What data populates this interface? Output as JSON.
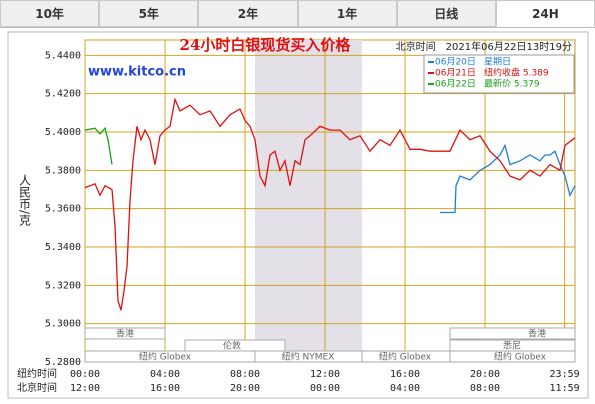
{
  "tabs": [
    "10年",
    "5年",
    "2年",
    "1年",
    "日线",
    "24H"
  ],
  "chart_data": {
    "type": "line",
    "title": "24小时白银现货买入价格",
    "subtitle": "北京时间　2021年06月22日13时19分",
    "watermark": "www.kitco.cn",
    "y_label": "人民币/克",
    "x_row_labels": [
      "纽约时间",
      "北京时间"
    ],
    "sessions": [
      "香港",
      "香港",
      "伦敦",
      "悉尼",
      "纽约 Globex",
      "纽约 NYMEX",
      "纽约 Globex",
      "纽约 Globex"
    ],
    "xlim": [
      0,
      24.5
    ],
    "ylim": [
      5.28,
      5.448
    ],
    "grid": true,
    "yticks": [
      {
        "value": 5.44,
        "label": "5.4400"
      },
      {
        "value": 5.42,
        "label": "5.4200"
      },
      {
        "value": 5.4,
        "label": "5.4000"
      },
      {
        "value": 5.38,
        "label": "5.3800"
      },
      {
        "value": 5.36,
        "label": "5.3600"
      },
      {
        "value": 5.34,
        "label": "5.3400"
      },
      {
        "value": 5.32,
        "label": "5.3200"
      },
      {
        "value": 5.3,
        "label": "5.3000"
      },
      {
        "value": 5.28,
        "label": "5.2800"
      }
    ],
    "xticks": [
      {
        "value": 0,
        "label": "00:00"
      },
      {
        "value": 4,
        "label": "04:00"
      },
      {
        "value": 8,
        "label": "08:00"
      },
      {
        "value": 12,
        "label": "12:00"
      },
      {
        "value": 16,
        "label": "16:00"
      },
      {
        "value": 20,
        "label": "20:00"
      },
      {
        "value": 23.98,
        "label": "23:59"
      }
    ],
    "x2ticks": [
      {
        "value": 0,
        "label": "12:00"
      },
      {
        "value": 4,
        "label": "16:00"
      },
      {
        "value": 8,
        "label": "20:00"
      },
      {
        "value": 12,
        "label": "00:00"
      },
      {
        "value": 16,
        "label": "04:00"
      },
      {
        "value": 20,
        "label": "08:00"
      },
      {
        "value": 23.98,
        "label": "11:59"
      }
    ],
    "series": [
      {
        "name": "06月20日",
        "note": "星期日",
        "color": "#1e7fd8",
        "x": [
          17.75,
          18.5,
          18.55,
          18.75,
          19.25,
          19.75,
          20.25,
          20.75,
          21,
          21.25,
          21.75,
          22.25,
          22.75,
          23,
          23.25,
          23.5,
          23.75,
          24,
          24.25,
          24.5
        ],
        "values": [
          5.358,
          5.358,
          5.372,
          5.377,
          5.375,
          5.38,
          5.383,
          5.388,
          5.393,
          5.383,
          5.385,
          5.388,
          5.385,
          5.388,
          5.388,
          5.39,
          5.383,
          5.377,
          5.367,
          5.372
        ]
      },
      {
        "name": "06月21日",
        "note": "纽约收盘 5.389",
        "color": "#e01010",
        "x": [
          0,
          0.5,
          0.75,
          1,
          1.35,
          1.5,
          1.65,
          1.8,
          1.95,
          2.1,
          2.25,
          2.4,
          2.6,
          2.8,
          3,
          3.25,
          3.5,
          3.75,
          4,
          4.25,
          4.5,
          4.75,
          5.25,
          5.75,
          6.25,
          6.75,
          7.25,
          7.75,
          8,
          8.25,
          8.5,
          8.75,
          9,
          9.25,
          9.5,
          9.75,
          10,
          10.25,
          10.5,
          10.75,
          11,
          11.25,
          11.75,
          12.25,
          12.75,
          13.25,
          13.75,
          14.25,
          14.75,
          15.25,
          15.75,
          16.25,
          16.75,
          17.25,
          17.75,
          18.25,
          18.75,
          19.25,
          19.75,
          20.25,
          20.75,
          21.25,
          21.75,
          22.25,
          22.75,
          23.25,
          23.75,
          24,
          24.5
        ],
        "values": [
          5.371,
          5.373,
          5.367,
          5.372,
          5.37,
          5.351,
          5.312,
          5.307,
          5.317,
          5.33,
          5.364,
          5.385,
          5.403,
          5.396,
          5.401,
          5.396,
          5.383,
          5.398,
          5.401,
          5.403,
          5.417,
          5.411,
          5.414,
          5.409,
          5.411,
          5.403,
          5.409,
          5.412,
          5.406,
          5.403,
          5.396,
          5.377,
          5.372,
          5.388,
          5.39,
          5.38,
          5.385,
          5.372,
          5.385,
          5.383,
          5.396,
          5.398,
          5.403,
          5.401,
          5.401,
          5.396,
          5.398,
          5.39,
          5.396,
          5.393,
          5.401,
          5.391,
          5.391,
          5.39,
          5.39,
          5.39,
          5.401,
          5.396,
          5.398,
          5.39,
          5.385,
          5.377,
          5.375,
          5.38,
          5.377,
          5.383,
          5.38,
          5.393,
          5.397
        ]
      },
      {
        "name": "06月22日",
        "note": "最新价 5.379",
        "color": "#1aa01a",
        "x": [
          0,
          0.5,
          0.75,
          1,
          1.15,
          1.35
        ],
        "values": [
          5.401,
          5.402,
          5.399,
          5.402,
          5.396,
          5.383
        ]
      }
    ]
  }
}
